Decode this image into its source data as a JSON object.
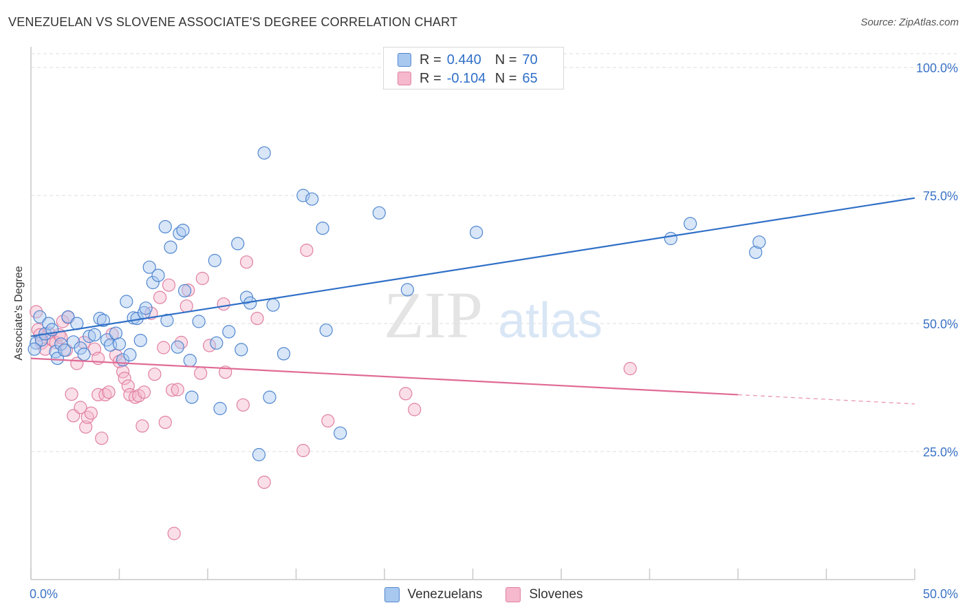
{
  "header": {
    "title": "VENEZUELAN VS SLOVENE ASSOCIATE'S DEGREE CORRELATION CHART",
    "source": "Source: ZipAtlas.com"
  },
  "watermark": {
    "zip": "ZIP",
    "atlas": "atlas"
  },
  "legend": {
    "rows": [
      {
        "r_label": "R =",
        "r_value": "0.440",
        "n_label": "N =",
        "n_value": "70"
      },
      {
        "r_label": "R =",
        "r_value": "-0.104",
        "n_label": "N =",
        "n_value": "65"
      }
    ]
  },
  "bottom_legend": {
    "venezuelans": "Venezuelans",
    "slovenes": "Slovenes"
  },
  "colors": {
    "blue_fill": "#a8c8ef",
    "blue_stroke": "#4f86cf",
    "blue_line": "#2f6fc7",
    "pink_fill": "#f5b8cc",
    "pink_stroke": "#e07fa0",
    "pink_line": "#e06a95",
    "tick_text": "#3b73c6",
    "grid": "#dedede"
  },
  "chart_data": {
    "type": "scatter",
    "title": "VENEZUELAN VS SLOVENE ASSOCIATE'S DEGREE CORRELATION CHART",
    "xlabel": "",
    "ylabel": "Associate's Degree",
    "xlim": [
      0,
      50
    ],
    "ylim": [
      0,
      105
    ],
    "x_tick_labels": [
      "0.0%",
      "50.0%"
    ],
    "y_ticks": [
      25,
      50,
      75,
      100
    ],
    "y_tick_labels": [
      "25.0%",
      "50.0%",
      "75.0%",
      "100.0%"
    ],
    "grid": true,
    "series": [
      {
        "name": "Venezuelans",
        "R": 0.44,
        "N": 70,
        "trend": {
          "x0": 0,
          "y0": 47.5,
          "x1": 50,
          "y1": 74.5
        },
        "points": [
          [
            0.3,
            46.2
          ],
          [
            0.5,
            51.3
          ],
          [
            0.6,
            46.8
          ],
          [
            0.8,
            48.0
          ],
          [
            1.0,
            50.0
          ],
          [
            1.2,
            48.8
          ],
          [
            1.4,
            44.5
          ],
          [
            1.5,
            43.2
          ],
          [
            1.7,
            46.0
          ],
          [
            1.9,
            44.8
          ],
          [
            2.1,
            51.3
          ],
          [
            2.4,
            46.4
          ],
          [
            2.6,
            50.0
          ],
          [
            2.8,
            45.2
          ],
          [
            3.0,
            44.0
          ],
          [
            3.3,
            47.5
          ],
          [
            3.6,
            47.8
          ],
          [
            3.9,
            51.0
          ],
          [
            4.1,
            50.6
          ],
          [
            4.3,
            46.8
          ],
          [
            4.5,
            45.8
          ],
          [
            4.8,
            48.1
          ],
          [
            5.0,
            46.0
          ],
          [
            5.2,
            42.9
          ],
          [
            5.4,
            54.3
          ],
          [
            5.6,
            43.9
          ],
          [
            5.8,
            51.1
          ],
          [
            6.0,
            51.0
          ],
          [
            6.2,
            46.7
          ],
          [
            6.4,
            52.1
          ],
          [
            6.5,
            53.0
          ],
          [
            6.7,
            61.0
          ],
          [
            6.9,
            58.0
          ],
          [
            7.2,
            59.4
          ],
          [
            7.6,
            68.9
          ],
          [
            7.7,
            50.6
          ],
          [
            7.9,
            64.9
          ],
          [
            8.3,
            45.4
          ],
          [
            8.4,
            67.6
          ],
          [
            8.6,
            68.2
          ],
          [
            8.7,
            56.4
          ],
          [
            9.0,
            42.8
          ],
          [
            9.1,
            35.6
          ],
          [
            9.5,
            50.4
          ],
          [
            10.4,
            62.3
          ],
          [
            10.5,
            46.2
          ],
          [
            10.7,
            33.4
          ],
          [
            11.2,
            48.4
          ],
          [
            11.7,
            65.6
          ],
          [
            11.9,
            44.9
          ],
          [
            12.2,
            55.1
          ],
          [
            12.4,
            54.0
          ],
          [
            12.9,
            24.4
          ],
          [
            13.2,
            83.3
          ],
          [
            13.5,
            35.6
          ],
          [
            13.7,
            53.6
          ],
          [
            14.3,
            44.1
          ],
          [
            15.4,
            75.0
          ],
          [
            15.9,
            74.3
          ],
          [
            16.5,
            68.6
          ],
          [
            16.7,
            48.7
          ],
          [
            17.5,
            28.6
          ],
          [
            19.7,
            71.6
          ],
          [
            21.3,
            56.6
          ],
          [
            25.2,
            67.8
          ],
          [
            36.2,
            66.6
          ],
          [
            37.3,
            69.5
          ],
          [
            41.0,
            63.9
          ],
          [
            41.2,
            65.9
          ],
          [
            0.2,
            45.0
          ]
        ]
      },
      {
        "name": "Slovenes",
        "R": -0.104,
        "N": 65,
        "trend": {
          "x0": 0,
          "y0": 43.2,
          "x1": 40,
          "y1": 36.1,
          "dash_to_x": 50,
          "dash_to_y": 34.3
        },
        "points": [
          [
            0.3,
            52.3
          ],
          [
            0.4,
            48.8
          ],
          [
            0.6,
            46.2
          ],
          [
            0.8,
            45.0
          ],
          [
            1.0,
            48.1
          ],
          [
            1.2,
            46.8
          ],
          [
            1.4,
            46.3
          ],
          [
            1.6,
            47.8
          ],
          [
            1.8,
            50.4
          ],
          [
            2.0,
            44.8
          ],
          [
            2.1,
            51.2
          ],
          [
            2.3,
            36.2
          ],
          [
            2.4,
            32.0
          ],
          [
            2.6,
            42.2
          ],
          [
            2.8,
            33.6
          ],
          [
            3.0,
            46.3
          ],
          [
            3.1,
            29.8
          ],
          [
            3.2,
            31.7
          ],
          [
            3.4,
            32.5
          ],
          [
            3.6,
            45.0
          ],
          [
            3.8,
            36.1
          ],
          [
            4.0,
            27.6
          ],
          [
            4.2,
            36.1
          ],
          [
            4.4,
            36.6
          ],
          [
            4.6,
            47.9
          ],
          [
            4.8,
            43.8
          ],
          [
            5.0,
            42.6
          ],
          [
            5.2,
            40.6
          ],
          [
            5.3,
            39.3
          ],
          [
            5.5,
            37.8
          ],
          [
            5.6,
            36.1
          ],
          [
            5.9,
            35.6
          ],
          [
            6.1,
            35.9
          ],
          [
            6.3,
            30.0
          ],
          [
            6.4,
            36.6
          ],
          [
            6.8,
            52.0
          ],
          [
            7.0,
            40.1
          ],
          [
            7.3,
            55.1
          ],
          [
            7.5,
            45.3
          ],
          [
            7.6,
            30.7
          ],
          [
            7.8,
            57.5
          ],
          [
            8.0,
            37.0
          ],
          [
            8.1,
            9.0
          ],
          [
            8.3,
            37.1
          ],
          [
            8.5,
            46.3
          ],
          [
            8.8,
            53.4
          ],
          [
            8.9,
            56.5
          ],
          [
            9.6,
            40.3
          ],
          [
            9.7,
            58.8
          ],
          [
            10.1,
            45.7
          ],
          [
            10.9,
            53.8
          ],
          [
            11.0,
            40.5
          ],
          [
            12.0,
            34.1
          ],
          [
            12.2,
            62.0
          ],
          [
            12.8,
            51.0
          ],
          [
            13.2,
            19.0
          ],
          [
            15.4,
            25.2
          ],
          [
            15.6,
            64.3
          ],
          [
            16.8,
            31.0
          ],
          [
            21.2,
            36.3
          ],
          [
            21.7,
            33.2
          ],
          [
            33.9,
            41.2
          ],
          [
            0.5,
            47.8
          ],
          [
            1.7,
            47.3
          ],
          [
            3.8,
            43.2
          ]
        ]
      }
    ]
  }
}
